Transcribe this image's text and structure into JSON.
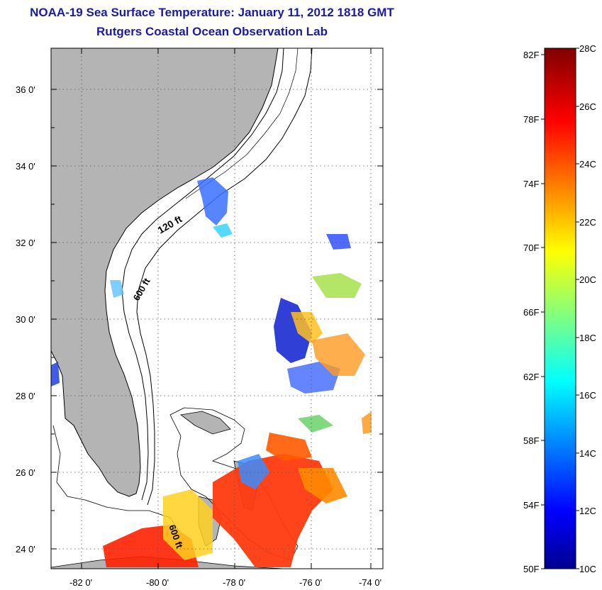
{
  "header": {
    "title": "NOAA-19 Sea Surface Temperature:  January 11, 2012 1818 GMT",
    "subtitle": "Rutgers Coastal Ocean Observation Lab"
  },
  "map": {
    "lat_labels": [
      "36 0'",
      "34 0'",
      "32 0'",
      "30 0'",
      "28 0'",
      "26 0'",
      "24 0'"
    ],
    "lon_labels": [
      "-82 0'",
      "-80 0'",
      "-78 0'",
      "-76 0'",
      "-74 0'"
    ],
    "contour_labels": [
      "120 ft",
      "600 ft",
      "600 ft"
    ],
    "land_color": "#b4b4b4",
    "ocean_color": "#ffffff"
  },
  "colorbar": {
    "fahrenheit": [
      "82F",
      "78F",
      "74F",
      "70F",
      "66F",
      "62F",
      "58F",
      "54F",
      "50F"
    ],
    "celsius": [
      "28C",
      "26C",
      "24C",
      "22C",
      "20C",
      "18C",
      "16C",
      "14C",
      "12C",
      "10C"
    ],
    "range_c": [
      10,
      28
    ],
    "colormap": "jet"
  }
}
